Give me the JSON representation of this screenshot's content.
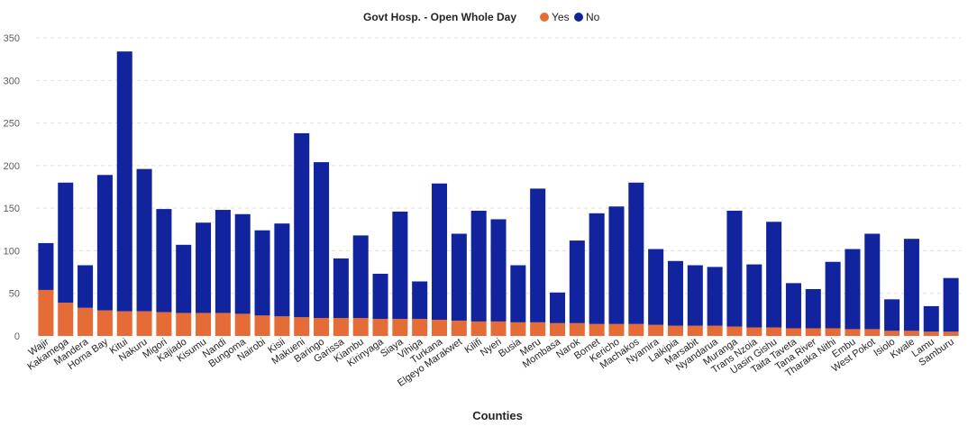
{
  "chart_data": {
    "type": "bar",
    "stacked": true,
    "title": "",
    "legend": {
      "title": "Govt Hosp. - Open Whole Day",
      "position": "top-center",
      "entries": [
        "Yes",
        "No"
      ]
    },
    "xlabel": "Counties",
    "ylabel": "",
    "ylim": [
      0,
      350
    ],
    "yticks": [
      0,
      50,
      100,
      150,
      200,
      250,
      300,
      350
    ],
    "grid": true,
    "categories": [
      "Wajir",
      "Kakamega",
      "Mandera",
      "Homa Bay",
      "Kitui",
      "Nakuru",
      "Migori",
      "Kajiado",
      "Kisumu",
      "Nandi",
      "Bungoma",
      "Nairobi",
      "Kisii",
      "Makueni",
      "Baringo",
      "Garissa",
      "Kiambu",
      "Kirinyaga",
      "Siaya",
      "Vihiga",
      "Turkana",
      "Elgeyo Marakwet",
      "Kilifi",
      "Nyeri",
      "Busia",
      "Meru",
      "Mombasa",
      "Narok",
      "Bomet",
      "Kericho",
      "Machakos",
      "Nyamira",
      "Laikipia",
      "Marsabit",
      "Nyandarua",
      "Muranga",
      "Trans Nzoia",
      "Uasin Gishu",
      "Taita Taveta",
      "Tana River",
      "Tharaka Nithi",
      "Embu",
      "West Pokot",
      "Isiolo",
      "Kwale",
      "Lamu",
      "Samburu"
    ],
    "series": [
      {
        "name": "Yes",
        "color": "#E66C37",
        "values": [
          54,
          39,
          33,
          30,
          29,
          29,
          28,
          27,
          27,
          27,
          26,
          24,
          23,
          22,
          21,
          21,
          21,
          20,
          20,
          20,
          19,
          18,
          17,
          17,
          16,
          16,
          15,
          15,
          14,
          14,
          14,
          13,
          12,
          12,
          12,
          11,
          10,
          10,
          9,
          9,
          9,
          8,
          8,
          6,
          6,
          5,
          5
        ]
      },
      {
        "name": "No",
        "color": "#12239E",
        "values": [
          55,
          141,
          50,
          159,
          305,
          167,
          121,
          80,
          106,
          121,
          117,
          100,
          109,
          216,
          183,
          70,
          97,
          53,
          126,
          44,
          160,
          102,
          130,
          120,
          67,
          157,
          36,
          97,
          130,
          138,
          166,
          89,
          76,
          71,
          69,
          136,
          74,
          124,
          53,
          46,
          78,
          94,
          112,
          37,
          108,
          30,
          63
        ]
      }
    ]
  }
}
